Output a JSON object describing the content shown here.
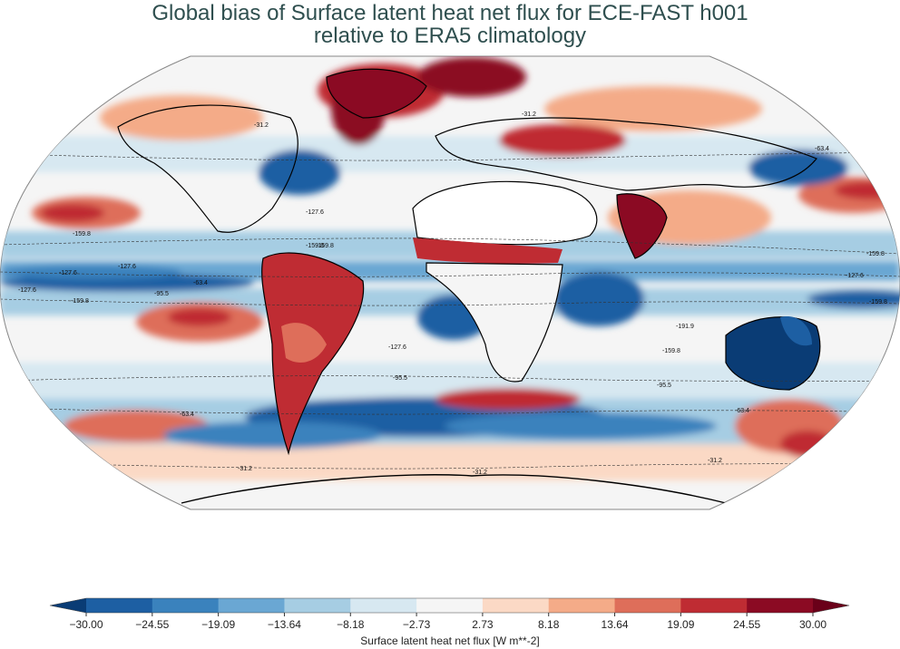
{
  "title": {
    "line1": "Global bias of Surface latent heat net flux for ECE-FAST h001",
    "line2": "relative to ERA5 climatology"
  },
  "colorbar": {
    "label": "Surface latent heat net flux [W m**-2]",
    "ticks": [
      "−30.00",
      "−24.55",
      "−19.09",
      "−13.64",
      "−8.18",
      "−2.73",
      "2.73",
      "8.18",
      "13.64",
      "19.09",
      "24.55",
      "30.00"
    ],
    "colors": [
      "#1d5fa3",
      "#3a82bd",
      "#6aa7d3",
      "#a6cde3",
      "#d7e8f1",
      "#f5f5f5",
      "#fbd9c5",
      "#f4ab88",
      "#de6e5a",
      "#bf2c33",
      "#8b0a23"
    ],
    "extend_low_color": "#0a3c75",
    "extend_high_color": "#6a0019"
  },
  "map": {
    "projection": "Robinson",
    "ocean_fill": "#f5f5f5",
    "contour_labels": [
      {
        "text": "-31.2"
      },
      {
        "text": "-31.2"
      },
      {
        "text": "-127.6"
      },
      {
        "text": "-159.8"
      },
      {
        "text": "-127.6"
      },
      {
        "text": "-127.6"
      },
      {
        "text": "-127.6"
      },
      {
        "text": "-159.8"
      },
      {
        "text": "-95.5"
      },
      {
        "text": "-63.4"
      },
      {
        "text": "-159.8"
      },
      {
        "text": "-159.8"
      },
      {
        "text": "-127.6"
      },
      {
        "text": "-95.5"
      },
      {
        "text": "-191.9"
      },
      {
        "text": "-159.8"
      },
      {
        "text": "-95.5"
      },
      {
        "text": "-63.4"
      },
      {
        "text": "-63.4"
      },
      {
        "text": "-31.2"
      },
      {
        "text": "-31.2"
      },
      {
        "text": "-31.2"
      },
      {
        "text": "-63.4"
      },
      {
        "text": "-159.8"
      },
      {
        "text": "-127.6"
      },
      {
        "text": "-159.8"
      }
    ]
  }
}
